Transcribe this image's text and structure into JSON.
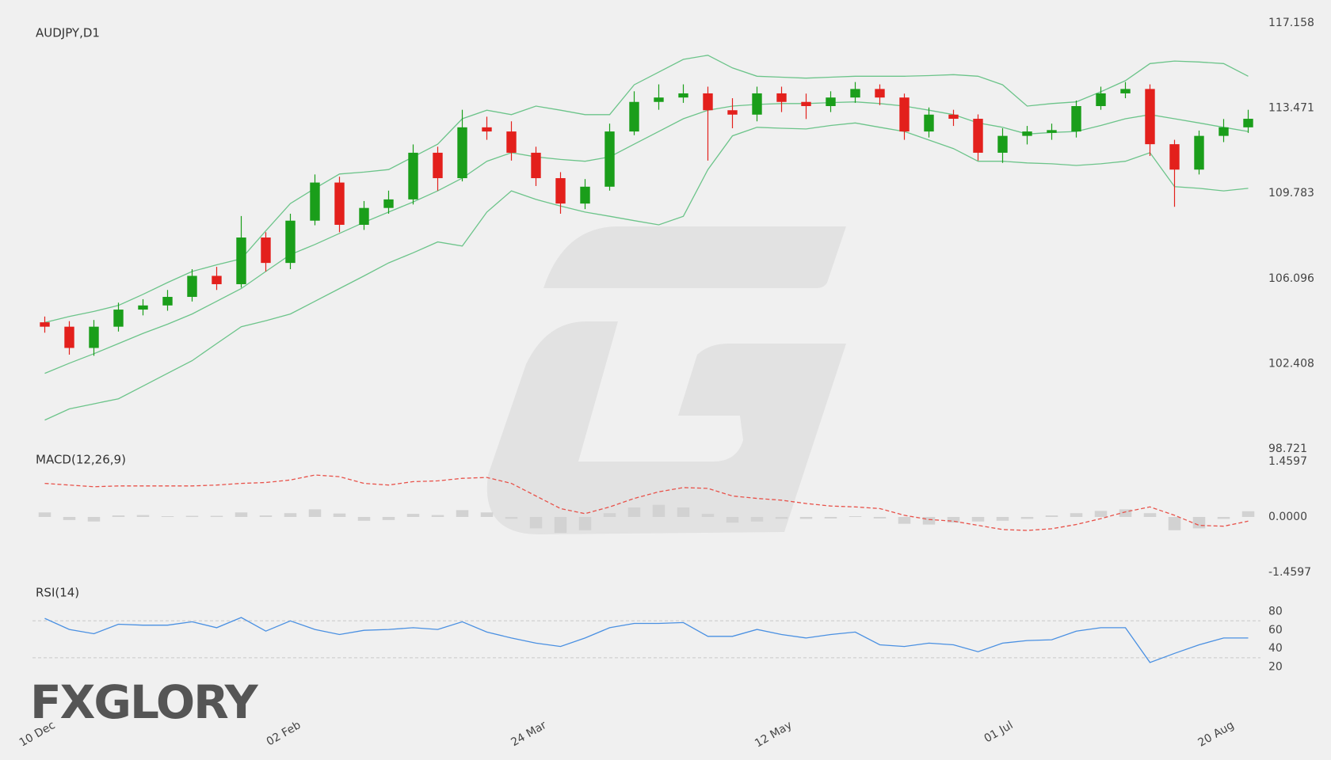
{
  "logo": "FXGLORY",
  "chart_data": [
    {
      "type": "candlestick",
      "title": "AUDJPY,D1",
      "xlim": [
        -0.5,
        49.5
      ],
      "xticks": [
        {
          "value": 0,
          "label": "10 Dec"
        },
        {
          "value": 10,
          "label": "02 Feb"
        },
        {
          "value": 20,
          "label": "24 Mar"
        },
        {
          "value": 30,
          "label": "12 May"
        },
        {
          "value": 39,
          "label": "01 Jul"
        },
        {
          "value": 48,
          "label": "20 Aug"
        }
      ],
      "ylim": [
        98.721,
        117.158
      ],
      "yticks": [
        117.158,
        113.471,
        109.783,
        106.096,
        102.408,
        98.721
      ],
      "up_color": "#1a9e1a",
      "down_color": "#e3201c",
      "open": [
        104.2,
        104.01,
        103.09,
        104.01,
        104.75,
        104.93,
        105.3,
        106.21,
        105.85,
        107.87,
        106.77,
        108.6,
        110.25,
        108.42,
        109.15,
        109.52,
        111.54,
        110.44,
        112.64,
        112.46,
        111.54,
        110.44,
        109.34,
        110.07,
        112.46,
        113.74,
        113.93,
        114.11,
        113.38,
        113.19,
        114.11,
        113.74,
        113.56,
        113.93,
        114.3,
        113.93,
        112.46,
        113.19,
        113.01,
        111.54,
        112.27,
        112.4,
        112.46,
        113.56,
        114.11,
        114.3,
        111.91,
        110.81,
        112.27,
        112.64
      ],
      "high": [
        104.45,
        104.25,
        104.3,
        105.05,
        105.2,
        105.6,
        106.5,
        106.6,
        108.8,
        108.1,
        108.9,
        110.6,
        110.5,
        109.45,
        109.9,
        111.9,
        111.8,
        113.4,
        113.1,
        112.9,
        111.8,
        110.7,
        110.4,
        112.8,
        114.2,
        114.5,
        114.5,
        114.4,
        113.9,
        114.4,
        114.4,
        114.1,
        114.2,
        114.6,
        114.5,
        114.1,
        113.5,
        113.4,
        113.2,
        112.6,
        112.7,
        112.8,
        113.8,
        114.4,
        114.6,
        114.5,
        112.1,
        112.5,
        113.0,
        113.4
      ],
      "low": [
        103.75,
        102.8,
        102.75,
        103.8,
        104.5,
        104.7,
        105.1,
        105.6,
        105.7,
        106.4,
        106.5,
        108.4,
        108.1,
        108.2,
        108.9,
        109.3,
        109.9,
        110.3,
        112.1,
        111.2,
        110.1,
        108.9,
        109.1,
        109.9,
        112.3,
        113.4,
        113.7,
        111.2,
        112.6,
        112.9,
        113.3,
        113.0,
        113.3,
        113.7,
        113.6,
        112.1,
        112.2,
        112.7,
        111.2,
        111.1,
        111.9,
        112.1,
        112.2,
        113.4,
        113.9,
        111.4,
        109.2,
        110.6,
        112.0,
        112.4
      ],
      "close": [
        104.01,
        103.09,
        104.01,
        104.75,
        104.93,
        105.3,
        106.21,
        105.85,
        107.87,
        106.77,
        108.6,
        110.25,
        108.42,
        109.15,
        109.52,
        111.54,
        110.44,
        112.64,
        112.46,
        111.54,
        110.44,
        109.34,
        110.07,
        112.46,
        113.74,
        113.93,
        114.11,
        113.38,
        113.19,
        114.11,
        113.74,
        113.56,
        113.93,
        114.3,
        113.93,
        112.46,
        113.19,
        113.01,
        111.54,
        112.27,
        112.46,
        112.52,
        113.56,
        114.11,
        114.3,
        111.91,
        110.81,
        112.27,
        112.64,
        113.01
      ],
      "bands": [
        {
          "color": "#6cc48a",
          "values": [
            104.19,
            104.45,
            104.67,
            104.93,
            105.41,
            105.92,
            106.4,
            106.69,
            106.95,
            108.16,
            109.34,
            110.0,
            110.62,
            110.7,
            110.81,
            111.36,
            111.91,
            113.01,
            113.38,
            113.19,
            113.56,
            113.38,
            113.19,
            113.19,
            114.48,
            115.03,
            115.58,
            115.76,
            115.21,
            114.85,
            114.81,
            114.77,
            114.81,
            114.85,
            114.85,
            114.85,
            114.88,
            114.92,
            114.85,
            114.48,
            113.56,
            113.67,
            113.74,
            114.18,
            114.66,
            115.4,
            115.51,
            115.47,
            115.4,
            114.85
          ]
        },
        {
          "color": "#6cc48a",
          "values": [
            101.99,
            102.43,
            102.84,
            103.28,
            103.72,
            104.12,
            104.56,
            105.11,
            105.66,
            106.4,
            107.13,
            107.57,
            108.05,
            108.53,
            108.97,
            109.41,
            109.89,
            110.44,
            111.17,
            111.54,
            111.36,
            111.25,
            111.17,
            111.36,
            111.91,
            112.46,
            113.01,
            113.38,
            113.56,
            113.63,
            113.67,
            113.67,
            113.71,
            113.74,
            113.67,
            113.56,
            113.38,
            113.19,
            112.83,
            112.64,
            112.35,
            112.42,
            112.46,
            112.72,
            113.01,
            113.19,
            113.01,
            112.83,
            112.64,
            112.46
          ]
        },
        {
          "color": "#6cc48a",
          "values": [
            99.97,
            100.45,
            100.67,
            100.89,
            101.44,
            101.99,
            102.54,
            103.28,
            104.01,
            104.27,
            104.56,
            105.11,
            105.66,
            106.21,
            106.77,
            107.21,
            107.68,
            107.5,
            108.97,
            109.89,
            109.52,
            109.23,
            108.97,
            108.79,
            108.6,
            108.42,
            108.79,
            110.81,
            112.27,
            112.64,
            112.6,
            112.57,
            112.72,
            112.83,
            112.64,
            112.46,
            112.09,
            111.72,
            111.17,
            111.17,
            111.1,
            111.06,
            110.99,
            111.06,
            111.17,
            111.54,
            110.07,
            110.0,
            109.89,
            110.0
          ]
        }
      ]
    },
    {
      "type": "combo",
      "title": "MACD(12,26,9)",
      "ylim": [
        -1.4597,
        1.4597
      ],
      "yticks": [
        1.4597,
        {
          "value": 0,
          "label": "0.0000"
        },
        -1.4597
      ],
      "series": [
        {
          "type": "bar",
          "color": "#d2d2d2",
          "values": [
            0.12,
            -0.08,
            -0.12,
            0.04,
            0.05,
            0.02,
            0.03,
            0.03,
            0.12,
            0.04,
            0.1,
            0.2,
            0.09,
            -0.1,
            -0.08,
            0.08,
            0.05,
            0.18,
            0.12,
            -0.05,
            -0.3,
            -0.42,
            -0.35,
            0.1,
            0.25,
            0.32,
            0.25,
            0.08,
            -0.15,
            -0.12,
            -0.05,
            -0.05,
            -0.04,
            0.02,
            -0.04,
            -0.18,
            -0.2,
            -0.15,
            -0.12,
            -0.1,
            -0.05,
            0.04,
            0.1,
            0.16,
            0.2,
            0.1,
            -0.35,
            -0.3,
            -0.05,
            0.15
          ]
        },
        {
          "type": "line",
          "color": "#e8524a",
          "dashed": true,
          "values": [
            0.885,
            0.841,
            0.796,
            0.818,
            0.818,
            0.818,
            0.818,
            0.841,
            0.885,
            0.907,
            0.973,
            1.106,
            1.062,
            0.885,
            0.841,
            0.929,
            0.951,
            1.018,
            1.04,
            0.885,
            0.553,
            0.221,
            0.088,
            0.265,
            0.487,
            0.664,
            0.774,
            0.752,
            0.553,
            0.487,
            0.442,
            0.354,
            0.288,
            0.265,
            0.221,
            0.044,
            -0.066,
            -0.111,
            -0.221,
            -0.332,
            -0.354,
            -0.31,
            -0.199,
            -0.044,
            0.133,
            0.265,
            0.044,
            -0.221,
            -0.243,
            -0.111
          ]
        }
      ]
    },
    {
      "type": "line",
      "title": "RSI(14)",
      "ylim": [
        0,
        100
      ],
      "yticks": [
        80,
        60,
        40,
        20
      ],
      "levels": [
        70,
        30
      ],
      "color": "#4a90e2",
      "values": [
        72.6,
        60.6,
        56.0,
        66.2,
        65.2,
        65.2,
        68.9,
        62.5,
        73.5,
        58.8,
        69.8,
        60.6,
        55.1,
        59.7,
        60.6,
        62.5,
        60.6,
        68.9,
        57.8,
        51.4,
        45.8,
        42.2,
        51.4,
        62.5,
        67.1,
        67.1,
        68.0,
        53.2,
        53.2,
        60.6,
        55.1,
        51.4,
        55.1,
        57.8,
        44.0,
        42.2,
        45.8,
        44.0,
        36.6,
        45.8,
        48.6,
        49.5,
        58.8,
        62.5,
        62.5,
        25.0,
        34.8,
        44.0,
        51.4,
        51.4
      ]
    }
  ]
}
